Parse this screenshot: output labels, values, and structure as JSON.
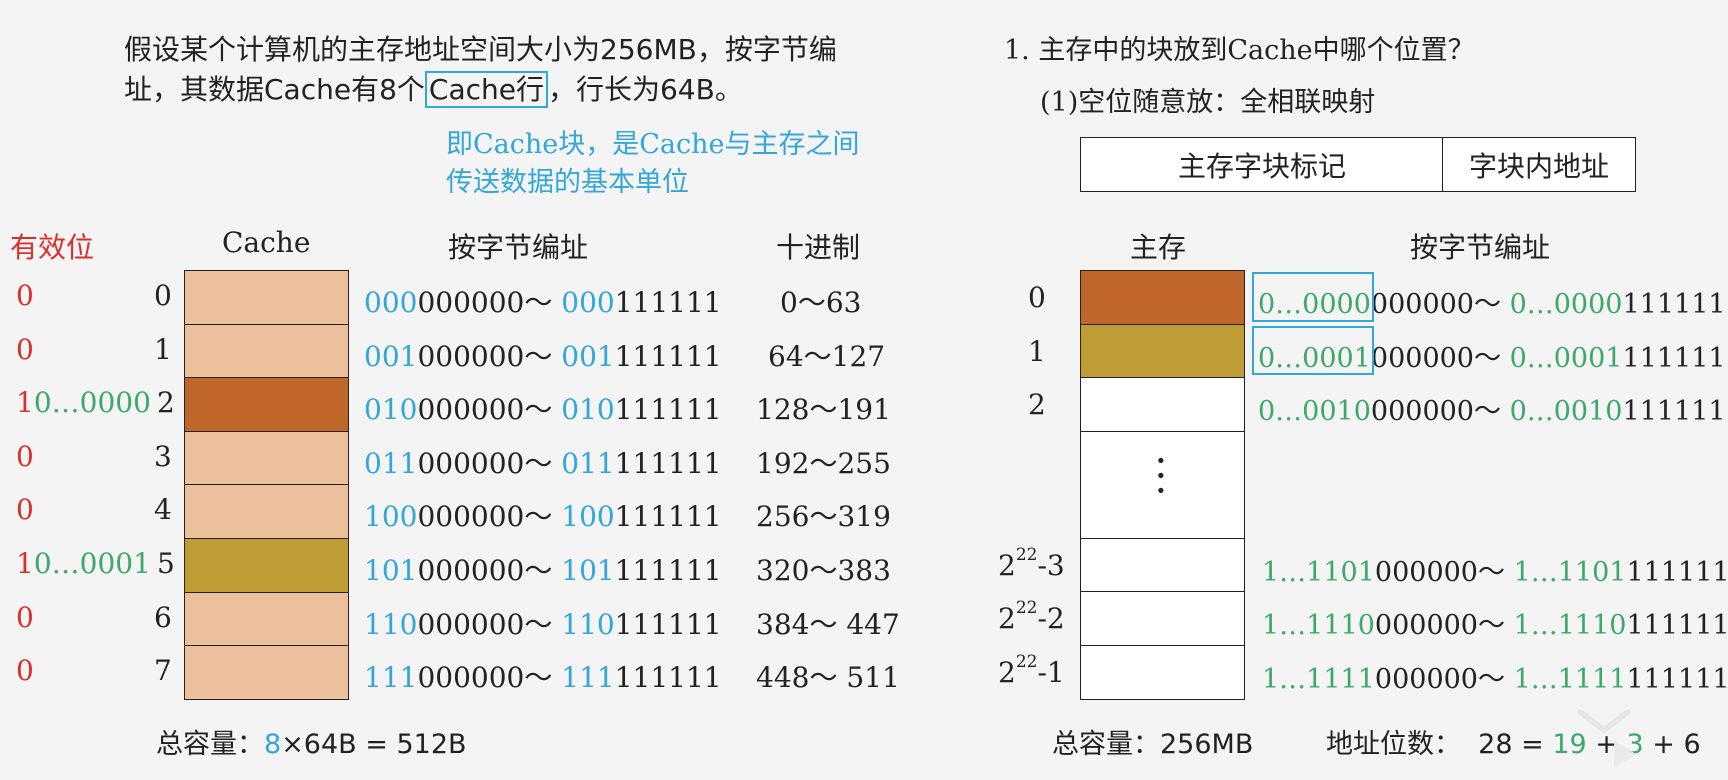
{
  "intro": {
    "line1": "假设某个计算机的主存地址空间大小为256MB，按字节编",
    "line2a": "址，其数据Cache有8个",
    "line2b": "Cache行",
    "line2c": "，行长为64B。"
  },
  "note": {
    "line1": "即Cache块，是Cache与主存之间",
    "line2": "传送数据的基本单位"
  },
  "question": {
    "title": "1. 主存中的块放到Cache中哪个位置？",
    "sub": "(1)空位随意放：全相联映射"
  },
  "address_format": {
    "tag": "主存字块标记",
    "offset": "字块内地址"
  },
  "left": {
    "valid_header": "有效位",
    "cache_header": "Cache",
    "addr_header": "按字节编址",
    "dec_header": "十进制",
    "rows": [
      {
        "valid": "0",
        "tag": "",
        "idx": "0",
        "fill": "light",
        "p1": "000",
        "s1": "000000",
        "sep": "～ ",
        "p2": "000",
        "s2": "111111",
        "dec": "0～63"
      },
      {
        "valid": "0",
        "tag": "",
        "idx": "1",
        "fill": "light",
        "p1": "001",
        "s1": "000000",
        "sep": "～ ",
        "p2": "001",
        "s2": "111111",
        "dec": "64～127"
      },
      {
        "valid": "1",
        "tag": "0…0000",
        "idx": "2",
        "fill": "dark",
        "p1": "010",
        "s1": "000000",
        "sep": "～ ",
        "p2": "010",
        "s2": "111111",
        "dec": "128～191"
      },
      {
        "valid": "0",
        "tag": "",
        "idx": "3",
        "fill": "light",
        "p1": "011",
        "s1": "000000",
        "sep": "～ ",
        "p2": "011",
        "s2": "111111",
        "dec": "192～255"
      },
      {
        "valid": "0",
        "tag": "",
        "idx": "4",
        "fill": "light",
        "p1": "100",
        "s1": "000000",
        "sep": "～ ",
        "p2": "100",
        "s2": "111111",
        "dec": "256～319"
      },
      {
        "valid": "1",
        "tag": "0…0001",
        "idx": "5",
        "fill": "olive",
        "p1": "101",
        "s1": "000000",
        "sep": "～ ",
        "p2": "101",
        "s2": "111111",
        "dec": "320～383"
      },
      {
        "valid": "0",
        "tag": "",
        "idx": "6",
        "fill": "light",
        "p1": "110",
        "s1": "000000",
        "sep": "～ ",
        "p2": "110",
        "s2": "111111",
        "dec": "384～ 447"
      },
      {
        "valid": "0",
        "tag": "",
        "idx": "7",
        "fill": "light",
        "p1": "111",
        "s1": "000000",
        "sep": "～ ",
        "p2": "111",
        "s2": "111111",
        "dec": "448～ 511"
      }
    ],
    "capacity_label": "总容量：",
    "capacity_num": "8",
    "capacity_rest": "×64B = 512B"
  },
  "right": {
    "mem_header": "主存",
    "addr_header": "按字节编址",
    "rows": [
      {
        "idx": "0",
        "exp": "",
        "suffix": "",
        "fill": "dark",
        "p1": "0…0000",
        "s1": "000000",
        "sep": "～ ",
        "p2": "0…0000",
        "s2": "111111",
        "highlight": true
      },
      {
        "idx": "1",
        "exp": "",
        "suffix": "",
        "fill": "olive",
        "p1": "0…0001",
        "s1": "000000",
        "sep": "～ ",
        "p2": "0…0001",
        "s2": "111111",
        "highlight": true
      },
      {
        "idx": "2",
        "exp": "",
        "suffix": "",
        "fill": "white",
        "p1": "0…0010",
        "s1": "000000",
        "sep": "～ ",
        "p2": "0…0010",
        "s2": "111111",
        "highlight": false
      },
      {
        "idx": "",
        "exp": "",
        "suffix": "",
        "fill": "white",
        "p1": "",
        "s1": "",
        "sep": "",
        "p2": "",
        "s2": "",
        "highlight": false,
        "dots": "·\n·\n·"
      },
      {
        "idx": "2",
        "exp": "22",
        "suffix": "-3",
        "fill": "white",
        "p1": "1…1101",
        "s1": "000000",
        "sep": "～ ",
        "p2": "1…1101",
        "s2": "111111",
        "highlight": false
      },
      {
        "idx": "2",
        "exp": "22",
        "suffix": "-2",
        "fill": "white",
        "p1": "1…1110",
        "s1": "000000",
        "sep": "～ ",
        "p2": "1…1110",
        "s2": "111111",
        "highlight": false
      },
      {
        "idx": "2",
        "exp": "22",
        "suffix": "-1",
        "fill": "white",
        "p1": "1…1111",
        "s1": "000000",
        "sep": "～ ",
        "p2": "1…1111",
        "s2": "111111",
        "highlight": false
      }
    ],
    "capacity_label": "总容量：",
    "capacity_value": "256MB",
    "bits_label": "地址位数：",
    "bits_value": "28 = ",
    "bits_a": "19",
    "bits_b": " + ",
    "bits_c": "3",
    "bits_d": " + 6"
  },
  "colors": {
    "light": "#ecc09a",
    "dark": "#bf672b",
    "olive": "#bf9c34",
    "white": "#ffffff",
    "blue": "#33a7d8",
    "green": "#3ea86a",
    "red": "#d9302c"
  }
}
